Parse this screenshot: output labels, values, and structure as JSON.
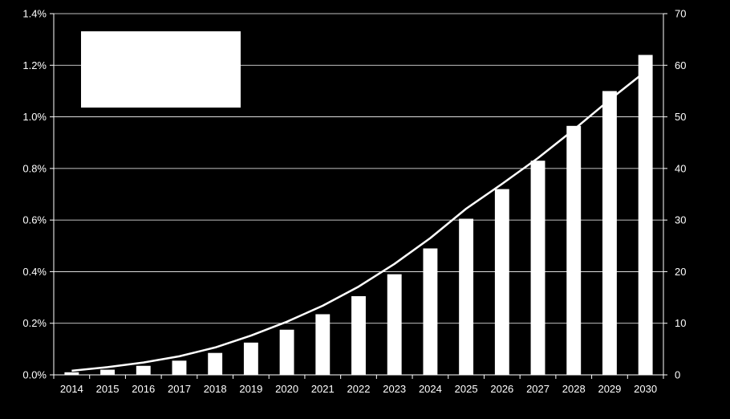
{
  "chart_data": {
    "type": "bar",
    "colors": {
      "background": "#000000",
      "bars": "#ffffff",
      "line": "#ffffff",
      "grid": "#ffffff",
      "legend_box": "#ffffff"
    },
    "grid": true,
    "legend": {
      "placement": "top-left",
      "entries": []
    },
    "categories": [
      "2014",
      "2015",
      "2016",
      "2017",
      "2018",
      "2019",
      "2020",
      "2021",
      "2022",
      "2023",
      "2024",
      "2025",
      "2026",
      "2027",
      "2028",
      "2029",
      "2030"
    ],
    "y_left": {
      "ylim": [
        0,
        1.4
      ],
      "ticks": [
        "0.0%",
        "0.2%",
        "0.4%",
        "0.6%",
        "0.8%",
        "1.0%",
        "1.2%",
        "1.4%"
      ]
    },
    "y_right": {
      "ylim": [
        0,
        70
      ],
      "ticks": [
        "0",
        "10",
        "20",
        "30",
        "40",
        "50",
        "60",
        "70"
      ]
    },
    "series": [
      {
        "type": "bar",
        "axis": "left",
        "values": [
          0.01,
          0.02,
          0.035,
          0.055,
          0.085,
          0.125,
          0.175,
          0.235,
          0.305,
          0.39,
          0.49,
          0.605,
          0.72,
          0.83,
          0.965,
          1.1,
          1.24
        ]
      },
      {
        "type": "line",
        "axis": "right",
        "values": [
          0.8,
          1.5,
          2.4,
          3.6,
          5.3,
          7.6,
          10.3,
          13.4,
          17.1,
          21.5,
          26.5,
          32.2,
          37.0,
          42.0,
          47.5,
          53.3,
          58.8
        ]
      }
    ]
  }
}
